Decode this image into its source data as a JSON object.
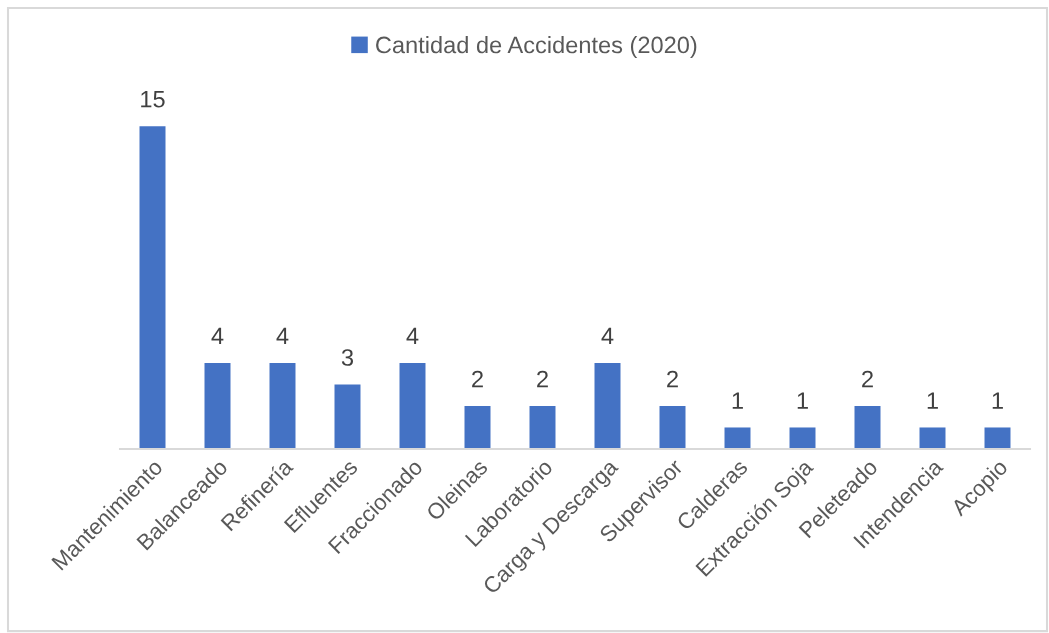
{
  "chart_data": {
    "type": "bar",
    "categories": [
      "Mantenimiento",
      "Balanceado",
      "Refinería",
      "Efluentes",
      "Fraccionado",
      "Oleinas",
      "Laboratorio",
      "Carga y Descarga",
      "Supervisor",
      "Calderas",
      "Extracción Soja",
      "Peleteado",
      "Intendencia",
      "Acopio"
    ],
    "series": [
      {
        "name": "Cantidad de Accidentes (2020)",
        "color": "#4472c4",
        "values": [
          15,
          4,
          4,
          3,
          4,
          2,
          2,
          4,
          2,
          1,
          1,
          2,
          1,
          1
        ]
      }
    ],
    "data_labels": true,
    "legend": "top",
    "tick_labels": "x"
  }
}
